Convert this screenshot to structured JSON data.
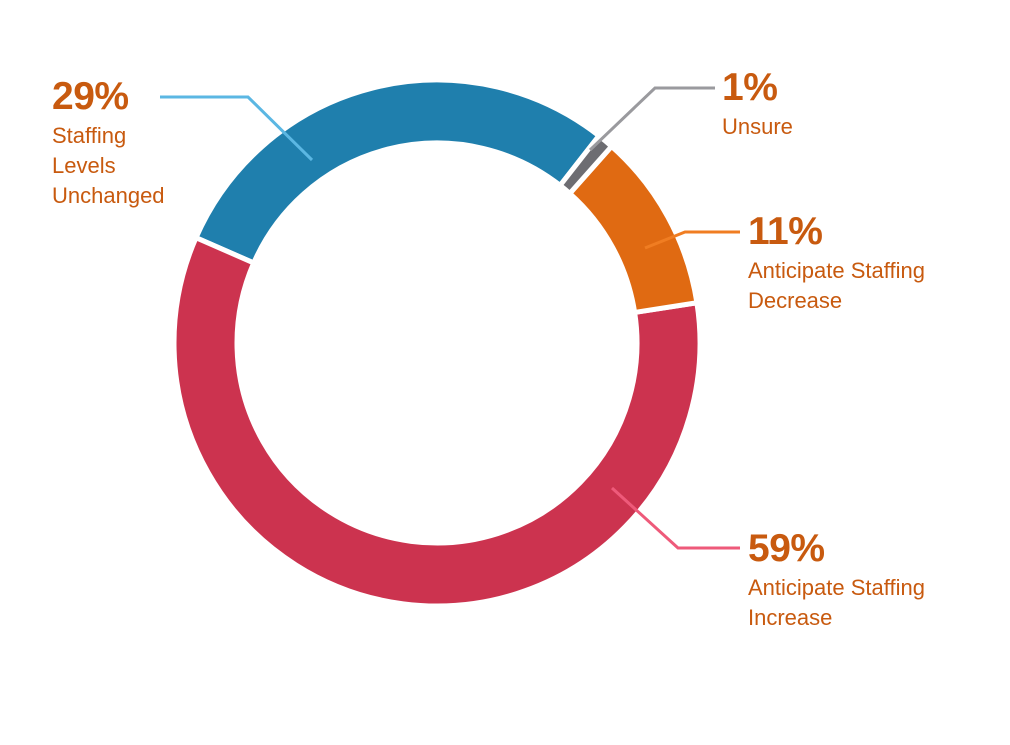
{
  "chart_data": {
    "type": "donut",
    "categories": [
      "Unsure",
      "Anticipate Staffing Decrease",
      "Anticipate Staffing Increase",
      "Staffing Levels Unchanged"
    ],
    "values": [
      1,
      11,
      59,
      29
    ],
    "value_labels": [
      "1%",
      "11%",
      "59%",
      "29%"
    ],
    "colors": [
      "#6d6d72",
      "#e06a12",
      "#cc334f",
      "#1f7fad"
    ]
  }
}
